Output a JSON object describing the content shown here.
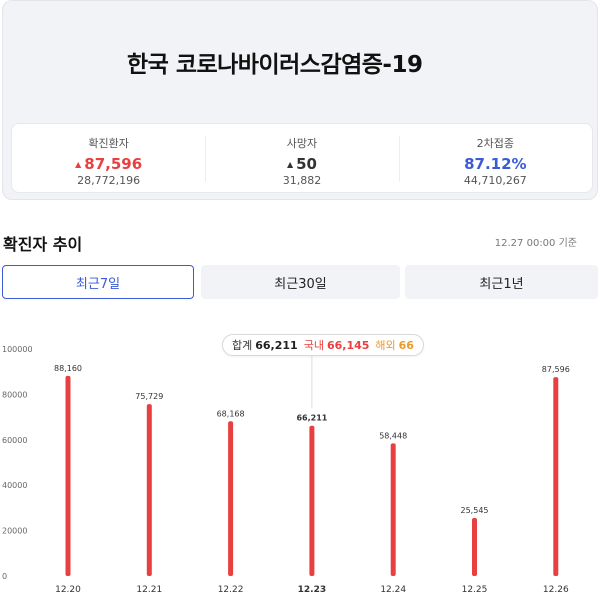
{
  "header": {
    "title": "한국 코로나바이러스감염증-19"
  },
  "stats": [
    {
      "label": "확진환자",
      "delta": "87,596",
      "total": "28,772,196",
      "arrow": "▲"
    },
    {
      "label": "사망자",
      "delta": "50",
      "total": "31,882",
      "arrow": "▲"
    },
    {
      "label": "2차접종",
      "delta": "87.12%",
      "total": "44,710,267",
      "arrow": ""
    }
  ],
  "section": {
    "title": "확진자 추이",
    "date": "12.27 00:00 기준"
  },
  "tabs": [
    {
      "label": "최근7일",
      "active": true
    },
    {
      "label": "최근30일",
      "active": false
    },
    {
      "label": "최근1년",
      "active": false
    }
  ],
  "tooltip": {
    "total_label": "합계",
    "total_value": "66,211",
    "domestic_label": "국내",
    "domestic_value": "66,145",
    "overseas_label": "해외",
    "overseas_value": "66"
  },
  "colors": {
    "bar": "#e84040",
    "accent": "#3b5bd6",
    "overseas": "#e89a2c"
  },
  "chart_data": {
    "type": "bar",
    "categories": [
      "12.20",
      "12.21",
      "12.22",
      "12.23",
      "12.24",
      "12.25",
      "12.26"
    ],
    "values": [
      88160,
      75729,
      68168,
      66211,
      58448,
      25545,
      87596
    ],
    "value_labels": [
      "88,160",
      "75,729",
      "68,168",
      "66,211",
      "58,448",
      "25,545",
      "87,596"
    ],
    "highlight_index": 3,
    "yticks": [
      0,
      20000,
      40000,
      60000,
      80000,
      100000
    ],
    "ylim": [
      0,
      100000
    ],
    "grid": false
  }
}
